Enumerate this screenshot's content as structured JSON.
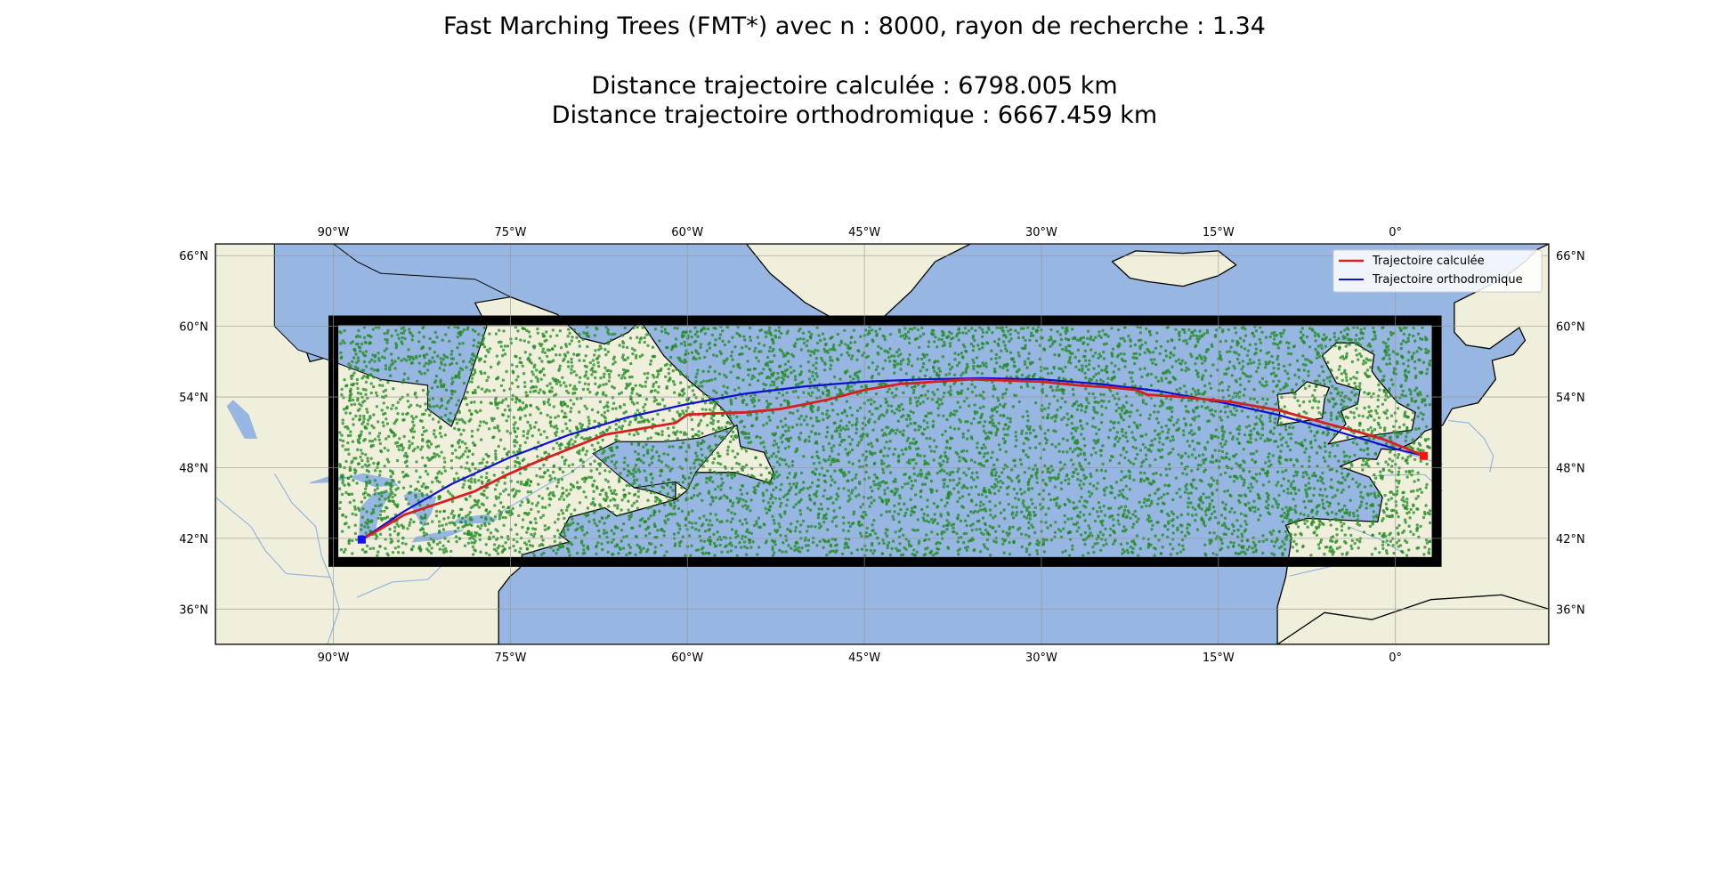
{
  "title": {
    "line1": "Fast Marching Trees (FMT*) avec n : 8000, rayon de recherche : 1.34",
    "line2": "Distance trajectoire calculée : 6798.005 km",
    "line3": "Distance trajectoire orthodromique : 6667.459 km"
  },
  "map": {
    "extent": {
      "lon": [
        -100,
        13
      ],
      "lat": [
        33,
        67
      ]
    },
    "lon_ticks": [
      {
        "value": -90,
        "label": "90°W"
      },
      {
        "value": -75,
        "label": "75°W"
      },
      {
        "value": -60,
        "label": "60°W"
      },
      {
        "value": -45,
        "label": "45°W"
      },
      {
        "value": -30,
        "label": "30°W"
      },
      {
        "value": -15,
        "label": "15°W"
      },
      {
        "value": 0,
        "label": "0°"
      }
    ],
    "lat_ticks": [
      {
        "value": 66,
        "label": "66°N"
      },
      {
        "value": 60,
        "label": "60°N"
      },
      {
        "value": 54,
        "label": "54°N"
      },
      {
        "value": 48,
        "label": "48°N"
      },
      {
        "value": 42,
        "label": "42°N"
      },
      {
        "value": 36,
        "label": "36°N"
      }
    ],
    "search_box": {
      "lon": [
        -90,
        3.5
      ],
      "lat": [
        40,
        60.5
      ]
    },
    "sample_count": 8000,
    "colors": {
      "ocean": "#97b6e1",
      "land": "#efefdb",
      "coast": "#000000",
      "rivers": "#97b6e1",
      "samples": "#228b22",
      "box": "#000000",
      "computed_path": "#d62020",
      "great_circle": "#1010d0",
      "start_marker": "#1010ff",
      "end_marker": "#ff1010"
    },
    "start_point": {
      "lon": -87.6,
      "lat": 41.9
    },
    "end_point": {
      "lon": 2.4,
      "lat": 49.0
    }
  },
  "legend": {
    "computed_label": "Trajectoire calculée",
    "great_circle_label": "Trajectoire orthodromique"
  },
  "chart_data": {
    "type": "line",
    "series": [
      {
        "name": "Trajectoire calculée",
        "x_lon": [
          -87.6,
          -86,
          -84,
          -81,
          -78,
          -75.5,
          -73,
          -70,
          -67,
          -64,
          -61,
          -60,
          -58,
          -55,
          -52,
          -48,
          -45,
          -42,
          -39,
          -36,
          -33,
          -30,
          -27,
          -24,
          -22,
          -21,
          -18,
          -14,
          -10,
          -6,
          -3,
          -1,
          1,
          2.4
        ],
        "y_lat": [
          41.9,
          42.8,
          44.0,
          45.0,
          46.0,
          47.3,
          48.4,
          49.6,
          50.8,
          51.3,
          51.8,
          52.5,
          52.6,
          52.7,
          53.0,
          53.8,
          54.6,
          55.1,
          55.3,
          55.5,
          55.4,
          55.3,
          55.0,
          54.8,
          54.6,
          54.2,
          54.0,
          53.6,
          52.9,
          51.8,
          51.0,
          50.4,
          49.6,
          49.0
        ]
      },
      {
        "name": "Trajectoire orthodromique",
        "x_lon": [
          -87.6,
          -84,
          -80,
          -75,
          -70,
          -65,
          -60,
          -55,
          -50,
          -45,
          -40,
          -35,
          -30,
          -25,
          -20,
          -15,
          -10,
          -5,
          0,
          2.4
        ],
        "y_lat": [
          41.9,
          44.3,
          46.6,
          48.9,
          50.8,
          52.3,
          53.4,
          54.3,
          54.9,
          55.3,
          55.5,
          55.6,
          55.5,
          55.1,
          54.5,
          53.6,
          52.5,
          51.1,
          49.6,
          49.0
        ]
      }
    ]
  }
}
